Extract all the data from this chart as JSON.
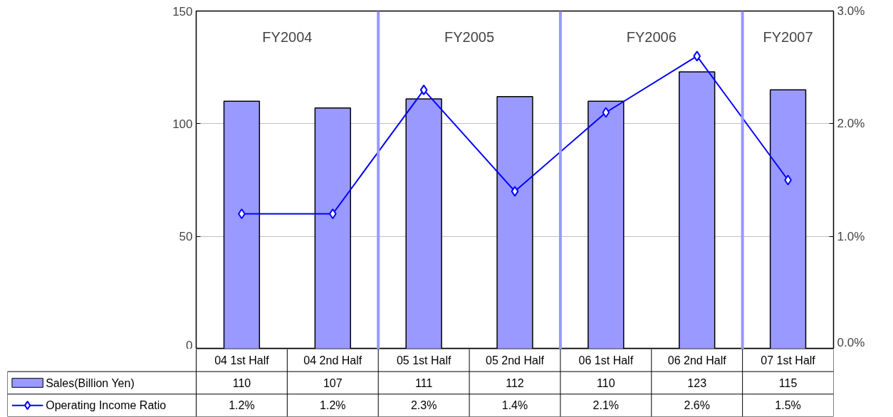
{
  "chart_data": {
    "type": "bar",
    "categories": [
      "04 1st Half",
      "04 2nd Half",
      "05 1st Half",
      "05 2nd Half",
      "06 1st Half",
      "06 2nd Half",
      "07 1st Half"
    ],
    "series": [
      {
        "name": "Sales(Billion Yen)",
        "color": "#9999ff",
        "values": [
          110,
          107,
          111,
          112,
          110,
          123,
          115
        ],
        "value_labels": [
          "110",
          "107",
          "111",
          "112",
          "110",
          "123",
          "115"
        ]
      },
      {
        "name": "Operating Income Ratio",
        "type": "line",
        "axis": "y2",
        "color": "#0000ff",
        "marker": "diamond",
        "values": [
          1.2,
          1.2,
          2.3,
          1.4,
          2.1,
          2.6,
          1.5
        ],
        "value_labels": [
          "1.2%",
          "1.2%",
          "2.3%",
          "1.4%",
          "2.1%",
          "2.6%",
          "1.5%"
        ]
      }
    ],
    "ylim": [
      0,
      150
    ],
    "yticks": [
      0,
      50,
      100,
      150
    ],
    "y2lim": [
      0,
      3
    ],
    "y2ticks": [
      {
        "value": 0,
        "label": "0.0%"
      },
      {
        "value": 1,
        "label": "1.0%"
      },
      {
        "value": 2,
        "label": "2.0%"
      },
      {
        "value": 3,
        "label": "3.0%"
      }
    ],
    "annotations": [
      "FY2004",
      "FY2005",
      "FY2006",
      "FY2007"
    ],
    "grid": "y",
    "legend": "bottom"
  }
}
